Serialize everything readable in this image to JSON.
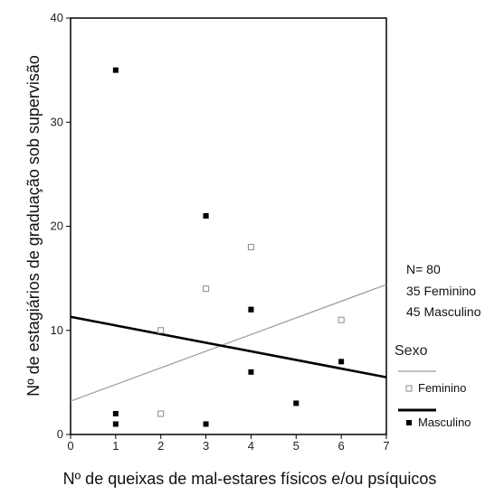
{
  "chart_data": {
    "type": "scatter",
    "xlabel": "Nº de queixas de mal-estares físicos e/ou psíquicos",
    "ylabel": "Nº de estagiários de graduação sob supervisão",
    "xlim": [
      0,
      7
    ],
    "ylim": [
      0,
      40
    ],
    "xticks": [
      0,
      1,
      2,
      3,
      4,
      5,
      6,
      7
    ],
    "yticks": [
      0,
      10,
      20,
      30,
      40
    ],
    "xtick_labels": [
      "0",
      "1",
      "2",
      "3",
      "4",
      "5",
      "6",
      "7"
    ],
    "ytick_labels": [
      "0",
      "10",
      "20",
      "30",
      "40"
    ],
    "grid": false,
    "legend": {
      "title": "Sexo",
      "placement": "right",
      "entries": [
        "Feminino",
        "Masculino"
      ]
    },
    "series": [
      {
        "name": "Feminino",
        "marker": "hollow-square",
        "color": "#9a9a9a",
        "points": [
          [
            2,
            10
          ],
          [
            2,
            2
          ],
          [
            3,
            14
          ],
          [
            4,
            18
          ],
          [
            6,
            11
          ]
        ],
        "fit_line": [
          [
            0,
            3.2
          ],
          [
            7,
            14.4
          ]
        ]
      },
      {
        "name": "Masculino",
        "marker": "filled-square",
        "color": "#000000",
        "points": [
          [
            1,
            35
          ],
          [
            1,
            2
          ],
          [
            1,
            1
          ],
          [
            3,
            21
          ],
          [
            3,
            21
          ],
          [
            3,
            1
          ],
          [
            4,
            12
          ],
          [
            4,
            12
          ],
          [
            4,
            6
          ],
          [
            5,
            3
          ],
          [
            6,
            7
          ]
        ],
        "fit_line": [
          [
            0,
            11.3
          ],
          [
            7,
            5.5
          ]
        ]
      }
    ],
    "annotations": [
      "N= 80",
      "35 Feminino",
      "45 Masculino"
    ]
  }
}
